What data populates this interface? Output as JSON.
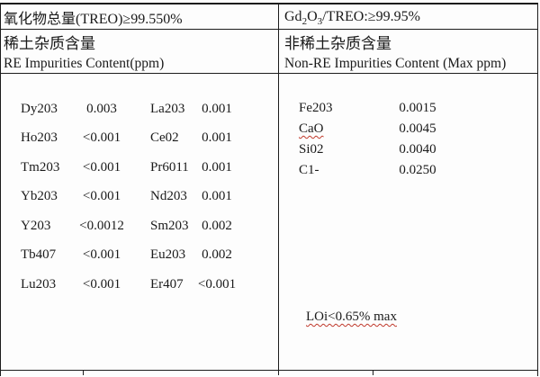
{
  "header": {
    "left_title": "氧化物总量(TREO)≥99.550%",
    "right_title_parts": {
      "p1": "Gd",
      "s1": "2",
      "p2": "O",
      "s2": "3",
      "p3": "/TREO:≥99.95%"
    },
    "left_section_cn": "稀土杂质含量",
    "left_section_en": "RE Impurities Content(ppm)",
    "right_section_cn": "非稀土杂质含量",
    "right_section_en": "Non-RE Impurities Content (Max ppm)"
  },
  "re_impurities": {
    "rows": [
      {
        "el1": "Dy203",
        "val1": "0.003",
        "el2": "La203",
        "val2": "0.001"
      },
      {
        "el1": "Ho203",
        "val1": "<0.001",
        "el2": "Ce02",
        "val2": "0.001"
      },
      {
        "el1": "Tm203",
        "val1": "<0.001",
        "el2": "Pr6011",
        "val2": "0.001"
      },
      {
        "el1": "Yb203",
        "val1": "<0.001",
        "el2": "Nd203",
        "val2": "0.001"
      },
      {
        "el1": "Y203",
        "val1": "<0.0012",
        "el2": "Sm203",
        "val2": "0.002"
      },
      {
        "el1": "Tb407",
        "val1": "<0.001",
        "el2": "Eu203",
        "val2": "0.002"
      },
      {
        "el1": "Lu203",
        "val1": "<0.001",
        "el2": "Er407",
        "val2": "<0.001"
      }
    ]
  },
  "non_re_impurities": {
    "rows": [
      {
        "el": "Fe203",
        "val": "0.0015"
      },
      {
        "el": "CaO",
        "val": "0.0045"
      },
      {
        "el": "Si02",
        "val": "0.0040"
      },
      {
        "el": "C1-",
        "val": "0.0250"
      }
    ],
    "loi_note": "LOi<0.65% max"
  },
  "colors": {
    "border": "#1c1c1c",
    "text": "#1a1a1a",
    "spellcheck_underline": "#c0392b",
    "background": "#fdfdfd"
  }
}
